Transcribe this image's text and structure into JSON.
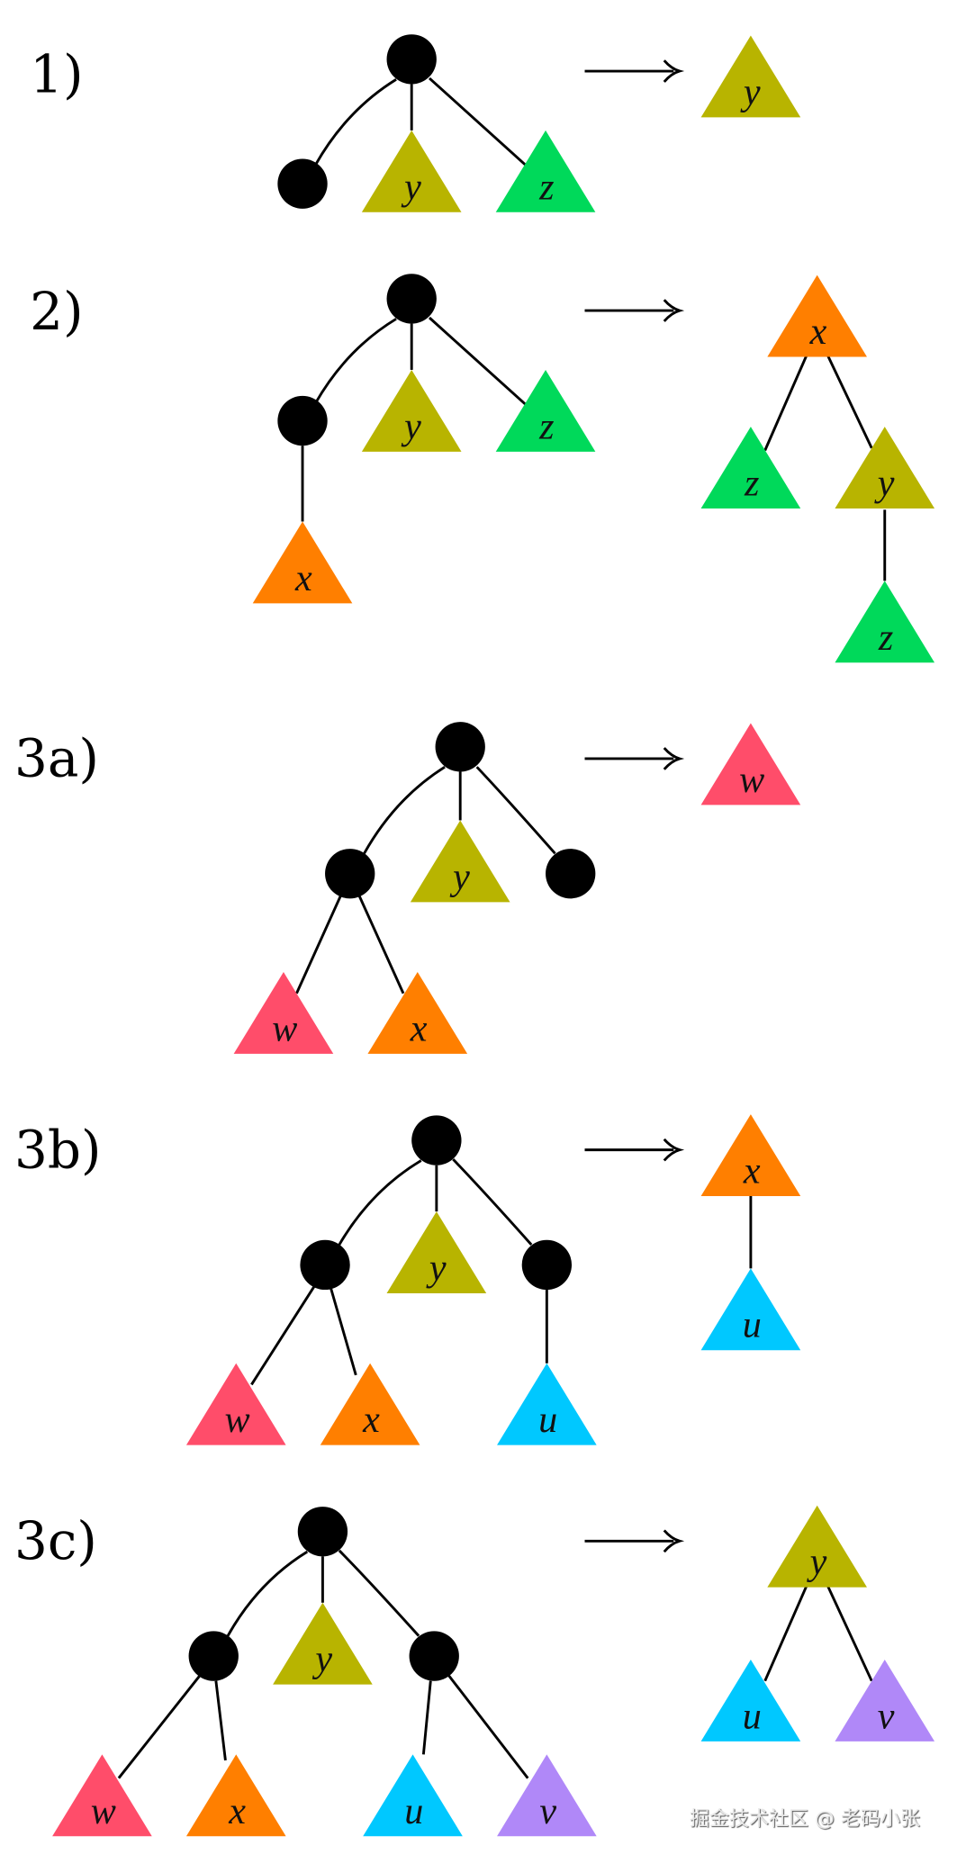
{
  "colors": {
    "y": "#b8b400",
    "z": "#00d95a",
    "x": "#ff7f00",
    "w": "#ff4d6a",
    "u": "#00c8ff",
    "v": "#b088f8",
    "node": "#000000"
  },
  "panels": [
    {
      "label": "1)",
      "input_leaves": [
        "y",
        "z"
      ],
      "output_leaves": [
        "y"
      ]
    },
    {
      "label": "2)",
      "input_leaves": [
        "y",
        "z",
        "x"
      ],
      "output_leaves": [
        "x",
        "z",
        "y",
        "z"
      ]
    },
    {
      "label": "3a)",
      "input_leaves": [
        "y",
        "w",
        "x"
      ],
      "output_leaves": [
        "w"
      ]
    },
    {
      "label": "3b)",
      "input_leaves": [
        "y",
        "w",
        "x",
        "u"
      ],
      "output_leaves": [
        "x",
        "u"
      ]
    },
    {
      "label": "3c)",
      "input_leaves": [
        "y",
        "w",
        "x",
        "u",
        "v"
      ],
      "output_leaves": [
        "y",
        "u",
        "v"
      ]
    }
  ],
  "watermark": "掘金技术社区 @ 老码小张"
}
